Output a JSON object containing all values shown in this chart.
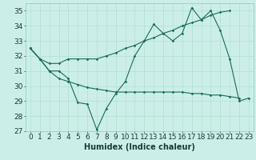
{
  "xlabel": "Humidex (Indice chaleur)",
  "bg_color": "#cceee8",
  "grid_color": "#aaddcc",
  "line_color": "#1a6b5a",
  "x": [
    0,
    1,
    2,
    3,
    4,
    5,
    6,
    7,
    8,
    9,
    10,
    11,
    12,
    13,
    14,
    15,
    16,
    17,
    18,
    19,
    20,
    21,
    22,
    23
  ],
  "zigzag": [
    32.5,
    31.8,
    31.0,
    31.0,
    30.5,
    28.9,
    28.8,
    27.1,
    28.5,
    29.5,
    30.3,
    32.0,
    33.0,
    34.1,
    33.5,
    33.0,
    33.5,
    35.2,
    34.4,
    35.0,
    33.7,
    31.8,
    29.0,
    29.2
  ],
  "risingline": [
    32.5,
    31.8,
    31.5,
    31.5,
    31.8,
    31.8,
    31.8,
    31.8,
    32.0,
    32.2,
    32.5,
    32.7,
    33.0,
    33.2,
    33.5,
    33.7,
    34.0,
    34.2,
    34.4,
    34.7,
    34.9,
    35.0,
    null,
    null
  ],
  "fallingline": [
    32.5,
    31.8,
    31.0,
    30.5,
    30.3,
    30.1,
    29.9,
    29.8,
    29.7,
    29.6,
    29.6,
    29.6,
    29.6,
    29.6,
    29.6,
    29.6,
    29.6,
    29.5,
    29.5,
    29.4,
    29.4,
    29.3,
    29.2,
    null
  ],
  "ylim_min": 27,
  "ylim_max": 35.5,
  "yticks": [
    27,
    28,
    29,
    30,
    31,
    32,
    33,
    34,
    35
  ],
  "fontsize": 6.5
}
